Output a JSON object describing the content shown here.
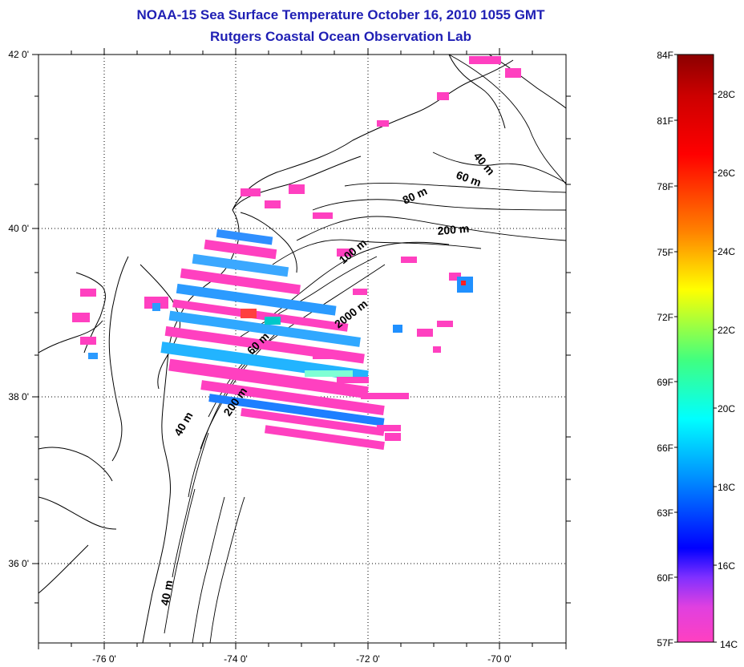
{
  "title": {
    "line1": "NOAA-15 Sea Surface Temperature October 16, 2010 1055 GMT",
    "line2": "Rutgers Coastal Ocean Observation Lab"
  },
  "axes": {
    "longitude_ticks": [
      "-76 0'",
      "-74 0'",
      "-72 0'",
      "-70 0'"
    ],
    "latitude_ticks": [
      "42 0'",
      "40 0'",
      "38 0'",
      "36 0'"
    ],
    "lon_range": [
      -77,
      -69
    ],
    "lat_range": [
      35,
      42
    ]
  },
  "depth_contour_labels": [
    "40 m",
    "60 m",
    "80 m",
    "200 m",
    "100 m",
    "2000 m",
    "60 m",
    "200 m",
    "40 m",
    "40 m"
  ],
  "colorbar": {
    "fahrenheit_labels": [
      "84F",
      "81F",
      "78F",
      "75F",
      "72F",
      "69F",
      "66F",
      "63F",
      "60F",
      "57F"
    ],
    "celsius_labels": [
      "28C",
      "26C",
      "24C",
      "22C",
      "20C",
      "18C",
      "16C",
      "14C"
    ],
    "colors": [
      "#8b0000",
      "#ff0000",
      "#ff8000",
      "#ffff00",
      "#00ff80",
      "#00ffff",
      "#0080ff",
      "#0000ff",
      "#8000ff",
      "#ff40c0"
    ]
  },
  "map_colors": {
    "coastline": "#000000",
    "contour": "#000000",
    "grid": "#000000",
    "sst_dominant": "#ff3fc0"
  }
}
